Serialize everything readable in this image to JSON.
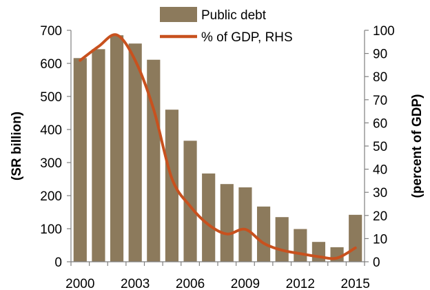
{
  "chart_data": {
    "type": "bar",
    "categories": [
      "2000",
      "2001",
      "2002",
      "2003",
      "2004",
      "2005",
      "2006",
      "2007",
      "2008",
      "2009",
      "2010",
      "2011",
      "2012",
      "2013",
      "2014",
      "2015"
    ],
    "x_tick_labels": [
      "2000",
      "2003",
      "2006",
      "2009",
      "2012",
      "2015"
    ],
    "ylabel_left": "(SR billion)",
    "ylabel_right": "(percent of GDP)",
    "ylim_left": [
      0,
      700
    ],
    "ylim_right": [
      0,
      100
    ],
    "y_ticks_left": [
      "0",
      "100",
      "200",
      "300",
      "400",
      "500",
      "600",
      "700"
    ],
    "y_ticks_right": [
      "0",
      "10",
      "20",
      "30",
      "40",
      "50",
      "60",
      "70",
      "80",
      "90",
      "100"
    ],
    "legend_position": "top-right",
    "grid": false,
    "series": [
      {
        "name": "Public debt",
        "type": "bar",
        "axis": "left",
        "color": "#8c7a5c",
        "values": [
          616,
          643,
          685,
          660,
          611,
          460,
          366,
          267,
          235,
          225,
          167,
          135,
          99,
          60,
          44,
          142
        ]
      },
      {
        "name": "% of GDP, RHS",
        "type": "line",
        "axis": "right",
        "color": "#c8511e",
        "values": [
          87,
          93,
          98,
          87,
          66,
          36,
          24,
          16,
          12,
          14,
          8,
          5,
          3.5,
          2.2,
          1.6,
          6
        ]
      }
    ]
  }
}
